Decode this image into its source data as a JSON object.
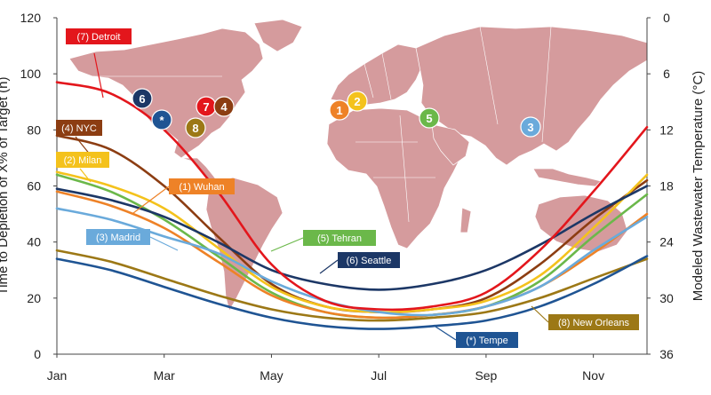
{
  "chart_data": {
    "type": "line",
    "x_tick_labels": [
      "Jan",
      "Mar",
      "May",
      "Jul",
      "Sep",
      "Nov"
    ],
    "y_left": {
      "label": "Time to Depletion of X% of Target (h)",
      "range": [
        0,
        120
      ],
      "ticks": [
        "0",
        "20",
        "40",
        "60",
        "80",
        "100",
        "120"
      ]
    },
    "y_right": {
      "label": "Modeled Wastewater Temperature (°C)",
      "range": [
        36,
        0
      ],
      "inverted": true,
      "ticks": [
        "0",
        "6",
        "12",
        "18",
        "24",
        "30",
        "36"
      ]
    },
    "x_range_months": [
      1,
      12
    ],
    "grid": false,
    "legend": "labels placed on curves",
    "series": [
      {
        "name": "(7) Detroit",
        "marker": "7",
        "color": "#e3161c",
        "x": [
          1,
          2,
          3,
          4,
          5,
          6,
          7,
          8,
          9,
          10,
          11,
          12
        ],
        "values": [
          97,
          93,
          80,
          58,
          32,
          19,
          16,
          17,
          22,
          37,
          58,
          81
        ]
      },
      {
        "name": "(4) NYC",
        "marker": "4",
        "color": "#8c3d12",
        "x": [
          1,
          2,
          3,
          4,
          5,
          6,
          7,
          8,
          9,
          10,
          11,
          12
        ],
        "values": [
          78,
          73,
          60,
          42,
          25,
          17,
          15,
          16,
          20,
          32,
          48,
          62
        ]
      },
      {
        "name": "(2) Milan",
        "marker": "2",
        "color": "#f4c21c",
        "x": [
          1,
          2,
          3,
          4,
          5,
          6,
          7,
          8,
          9,
          10,
          11,
          12
        ],
        "values": [
          65,
          60,
          52,
          38,
          24,
          17,
          15,
          16,
          19,
          28,
          45,
          64
        ]
      },
      {
        "name": "(1) Wuhan",
        "marker": "1",
        "color": "#ee8227",
        "x": [
          1,
          2,
          3,
          4,
          5,
          6,
          7,
          8,
          9,
          10,
          11,
          12
        ],
        "values": [
          58,
          53,
          45,
          33,
          21,
          15,
          13,
          14,
          17,
          24,
          36,
          50
        ]
      },
      {
        "name": "(5) Tehran",
        "marker": "5",
        "color": "#6bb84a",
        "x": [
          1,
          2,
          3,
          4,
          5,
          6,
          7,
          8,
          9,
          10,
          11,
          12
        ],
        "values": [
          64,
          58,
          48,
          35,
          22,
          15,
          13,
          14,
          17,
          26,
          42,
          57
        ]
      },
      {
        "name": "(3) Madrid",
        "marker": "3",
        "color": "#6aaadb",
        "x": [
          1,
          2,
          3,
          4,
          5,
          6,
          7,
          8,
          9,
          10,
          11,
          12
        ],
        "values": [
          52,
          48,
          42,
          36,
          26,
          19,
          15,
          14,
          17,
          24,
          37,
          49
        ]
      },
      {
        "name": "(6) Seattle",
        "marker": "6",
        "color": "#1c3766",
        "x": [
          1,
          2,
          3,
          4,
          5,
          6,
          7,
          8,
          9,
          10,
          11,
          12
        ],
        "values": [
          59,
          55,
          49,
          40,
          30,
          25,
          23,
          25,
          30,
          39,
          50,
          60
        ]
      },
      {
        "name": "(8) New Orleans",
        "marker": "8",
        "color": "#9c7816",
        "x": [
          1,
          2,
          3,
          4,
          5,
          6,
          7,
          8,
          9,
          10,
          11,
          12
        ],
        "values": [
          37,
          33,
          27,
          21,
          16,
          13,
          12,
          13,
          15,
          20,
          27,
          34
        ]
      },
      {
        "name": "(*) Tempe",
        "marker": "*",
        "color": "#1f5493",
        "x": [
          1,
          2,
          3,
          4,
          5,
          6,
          7,
          8,
          9,
          10,
          11,
          12
        ],
        "values": [
          34,
          30,
          24,
          18,
          13,
          10,
          9,
          10,
          12,
          17,
          25,
          35
        ]
      }
    ]
  },
  "colors": {
    "map_land": "#d59b9d",
    "map_border": "#ffffff"
  }
}
